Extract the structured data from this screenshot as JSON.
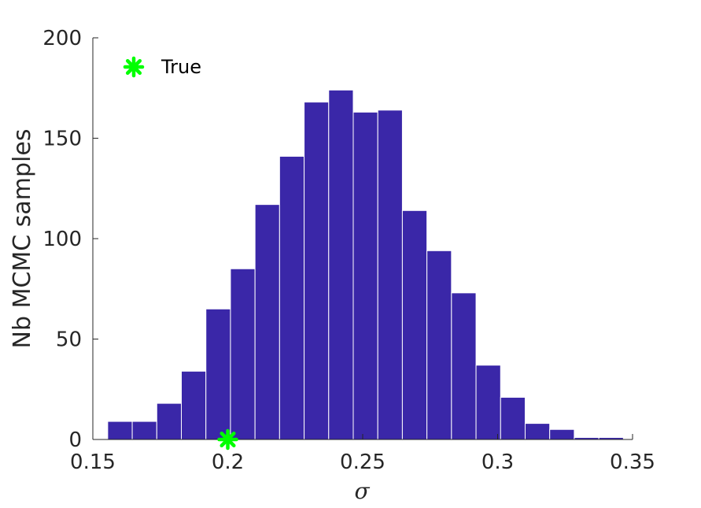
{
  "chart_data": {
    "type": "bar",
    "title": "",
    "xlabel": "σ",
    "ylabel": "Nb MCMC samples",
    "xlim": [
      0.15,
      0.35
    ],
    "ylim": [
      0,
      200
    ],
    "xticks": [
      0.15,
      0.2,
      0.25,
      0.3,
      0.35
    ],
    "xtick_labels": [
      "0.15",
      "0.2",
      "0.25",
      "0.3",
      "0.35"
    ],
    "yticks": [
      0,
      50,
      100,
      150,
      200
    ],
    "ytick_labels": [
      "0",
      "50",
      "100",
      "150",
      "200"
    ],
    "bin_edges": [
      0.1555,
      0.1646,
      0.1737,
      0.1828,
      0.1919,
      0.201,
      0.2101,
      0.2192,
      0.2283,
      0.2374,
      0.2465,
      0.2556,
      0.2647,
      0.2738,
      0.2829,
      0.292,
      0.3011,
      0.3102,
      0.3193,
      0.3284,
      0.3375,
      0.3466
    ],
    "counts": [
      9,
      9,
      18,
      34,
      65,
      85,
      117,
      141,
      168,
      174,
      163,
      164,
      114,
      94,
      73,
      37,
      21,
      8,
      5,
      1,
      1
    ],
    "bar_color": "#3A27A8",
    "grid": false,
    "legend": {
      "position": "top-left",
      "entries": [
        {
          "label": "True",
          "marker": "asterisk",
          "color": "#00FF00"
        }
      ]
    },
    "markers": [
      {
        "name": "True",
        "x": 0.2,
        "y": 0,
        "color": "#00FF00"
      }
    ]
  }
}
